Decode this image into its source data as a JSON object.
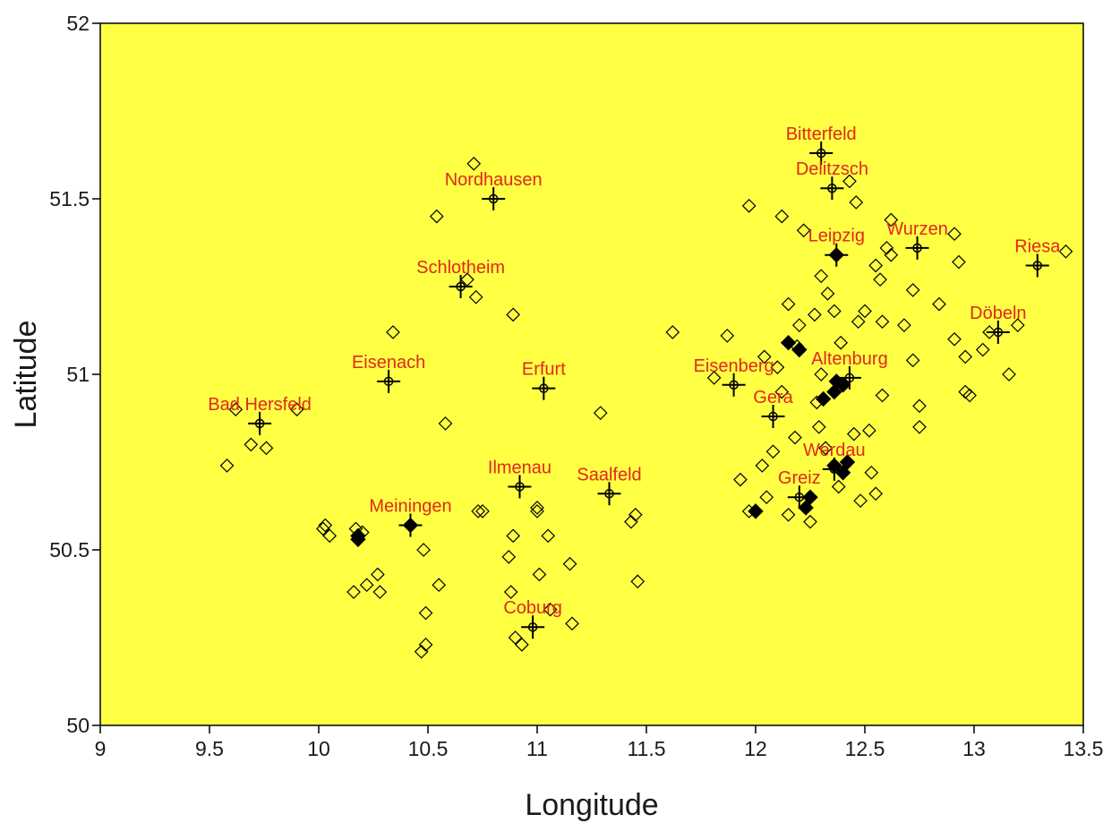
{
  "chart_data": {
    "type": "scatter",
    "title": "",
    "xlabel": "Longitude",
    "ylabel": "Latitude",
    "xlim": [
      9,
      13.5
    ],
    "ylim": [
      50,
      52
    ],
    "xticks": [
      9,
      9.5,
      10,
      10.5,
      11,
      11.5,
      12,
      12.5,
      13,
      13.5
    ],
    "yticks": [
      50,
      50.5,
      51,
      51.5,
      52
    ],
    "xtick_labels": [
      "9",
      "9.5",
      "10",
      "10.5",
      "11",
      "11.5",
      "12",
      "12.5",
      "13",
      "13.5"
    ],
    "ytick_labels": [
      "50",
      "50.5",
      "51",
      "51.5",
      "52"
    ],
    "grid": false,
    "plot_background": "#ffff44",
    "label_color": "#e0281e",
    "marker_color": "#000000",
    "series": [
      {
        "marker": "cross-circle",
        "points": [
          {
            "label": "Bitterfeld",
            "x": 12.3,
            "y": 51.63
          },
          {
            "label": "Delitzsch",
            "x": 12.35,
            "y": 51.53
          },
          {
            "label": "Nordhausen",
            "x": 10.8,
            "y": 51.5
          },
          {
            "label": "Leipzig",
            "x": 12.37,
            "y": 51.34
          },
          {
            "label": "Wurzen",
            "x": 12.74,
            "y": 51.36
          },
          {
            "label": "Riesa",
            "x": 13.29,
            "y": 51.31
          },
          {
            "label": "Schlotheim",
            "x": 10.65,
            "y": 51.25
          },
          {
            "label": "Döbeln",
            "x": 13.11,
            "y": 51.12
          },
          {
            "label": "Eisenach",
            "x": 10.32,
            "y": 50.98
          },
          {
            "label": "Erfurt",
            "x": 11.03,
            "y": 50.96
          },
          {
            "label": "Eisenberg",
            "x": 11.9,
            "y": 50.97
          },
          {
            "label": "Altenburg",
            "x": 12.43,
            "y": 50.99
          },
          {
            "label": "Gera",
            "x": 12.08,
            "y": 50.88
          },
          {
            "label": "Bad Hersfeld",
            "x": 9.73,
            "y": 50.86
          },
          {
            "label": "Werdau",
            "x": 12.36,
            "y": 50.73
          },
          {
            "label": "Ilmenau",
            "x": 10.92,
            "y": 50.68
          },
          {
            "label": "Saalfeld",
            "x": 11.33,
            "y": 50.66
          },
          {
            "label": "Greiz",
            "x": 12.2,
            "y": 50.65
          },
          {
            "label": "Meiningen",
            "x": 10.42,
            "y": 50.57
          },
          {
            "label": "Coburg",
            "x": 10.98,
            "y": 50.28
          }
        ]
      },
      {
        "marker": "open-diamond",
        "points": [
          [
            10.71,
            51.6
          ],
          [
            10.54,
            51.45
          ],
          [
            10.68,
            51.27
          ],
          [
            10.72,
            51.22
          ],
          [
            10.89,
            51.17
          ],
          [
            10.34,
            51.12
          ],
          [
            9.62,
            50.9
          ],
          [
            9.9,
            50.9
          ],
          [
            9.69,
            50.8
          ],
          [
            9.76,
            50.79
          ],
          [
            9.58,
            50.74
          ],
          [
            10.58,
            50.86
          ],
          [
            11.29,
            50.89
          ],
          [
            10.03,
            50.57
          ],
          [
            10.02,
            50.56
          ],
          [
            10.05,
            50.54
          ],
          [
            10.17,
            50.56
          ],
          [
            10.2,
            50.55
          ],
          [
            10.27,
            50.43
          ],
          [
            10.22,
            50.4
          ],
          [
            10.28,
            50.38
          ],
          [
            10.16,
            50.38
          ],
          [
            10.48,
            50.5
          ],
          [
            10.55,
            50.4
          ],
          [
            10.49,
            50.32
          ],
          [
            10.49,
            50.23
          ],
          [
            10.47,
            50.21
          ],
          [
            10.75,
            50.61
          ],
          [
            10.73,
            50.61
          ],
          [
            10.89,
            50.54
          ],
          [
            11.0,
            50.62
          ],
          [
            11.0,
            50.61
          ],
          [
            11.05,
            50.54
          ],
          [
            10.87,
            50.48
          ],
          [
            11.15,
            50.46
          ],
          [
            11.01,
            50.43
          ],
          [
            10.88,
            50.38
          ],
          [
            10.9,
            50.25
          ],
          [
            10.93,
            50.23
          ],
          [
            11.06,
            50.33
          ],
          [
            11.16,
            50.29
          ],
          [
            11.45,
            50.6
          ],
          [
            11.43,
            50.58
          ],
          [
            11.46,
            50.41
          ],
          [
            11.62,
            51.12
          ],
          [
            11.81,
            50.99
          ],
          [
            11.87,
            51.11
          ],
          [
            11.97,
            51.48
          ],
          [
            12.12,
            51.45
          ],
          [
            12.22,
            51.41
          ],
          [
            12.43,
            51.55
          ],
          [
            12.46,
            51.49
          ],
          [
            12.62,
            51.44
          ],
          [
            12.6,
            51.36
          ],
          [
            12.55,
            51.31
          ],
          [
            12.62,
            51.34
          ],
          [
            12.57,
            51.27
          ],
          [
            12.58,
            51.15
          ],
          [
            12.68,
            51.14
          ],
          [
            12.72,
            51.24
          ],
          [
            12.91,
            51.4
          ],
          [
            12.93,
            51.32
          ],
          [
            12.84,
            51.2
          ],
          [
            12.91,
            51.1
          ],
          [
            12.96,
            51.05
          ],
          [
            13.07,
            51.12
          ],
          [
            13.04,
            51.07
          ],
          [
            13.2,
            51.14
          ],
          [
            13.16,
            51.0
          ],
          [
            12.96,
            50.95
          ],
          [
            12.98,
            50.94
          ],
          [
            12.75,
            50.91
          ],
          [
            12.75,
            50.85
          ],
          [
            12.72,
            51.04
          ],
          [
            13.42,
            51.35
          ],
          [
            12.55,
            50.66
          ],
          [
            12.48,
            50.64
          ],
          [
            12.53,
            50.72
          ],
          [
            11.93,
            50.7
          ],
          [
            11.97,
            50.61
          ],
          [
            12.03,
            50.74
          ],
          [
            12.52,
            50.84
          ],
          [
            12.58,
            50.94
          ],
          [
            12.27,
            51.17
          ],
          [
            12.15,
            51.2
          ],
          [
            12.3,
            51.28
          ],
          [
            12.33,
            51.23
          ],
          [
            12.2,
            51.14
          ],
          [
            12.39,
            51.09
          ],
          [
            12.47,
            51.15
          ],
          [
            12.04,
            51.05
          ],
          [
            12.1,
            51.02
          ],
          [
            12.12,
            50.95
          ],
          [
            12.28,
            50.92
          ],
          [
            12.18,
            50.82
          ],
          [
            12.32,
            50.79
          ],
          [
            12.08,
            50.78
          ],
          [
            12.05,
            50.65
          ],
          [
            12.15,
            50.6
          ],
          [
            12.25,
            50.58
          ],
          [
            12.38,
            50.68
          ],
          [
            12.29,
            50.85
          ],
          [
            12.45,
            50.83
          ],
          [
            12.5,
            51.18
          ],
          [
            12.36,
            51.18
          ],
          [
            12.19,
            51.08
          ],
          [
            12.3,
            51.0
          ]
        ]
      },
      {
        "marker": "filled-diamond",
        "points": [
          [
            10.18,
            50.54
          ],
          [
            10.18,
            50.53
          ],
          [
            10.42,
            50.57
          ],
          [
            12.0,
            50.61
          ],
          [
            12.37,
            51.34
          ],
          [
            12.37,
            50.98
          ],
          [
            12.36,
            50.95
          ],
          [
            12.4,
            50.97
          ],
          [
            12.36,
            50.74
          ],
          [
            12.4,
            50.72
          ],
          [
            12.42,
            50.75
          ],
          [
            12.2,
            51.07
          ],
          [
            12.15,
            51.09
          ],
          [
            12.31,
            50.93
          ],
          [
            12.25,
            50.65
          ],
          [
            12.23,
            50.62
          ]
        ]
      }
    ]
  }
}
